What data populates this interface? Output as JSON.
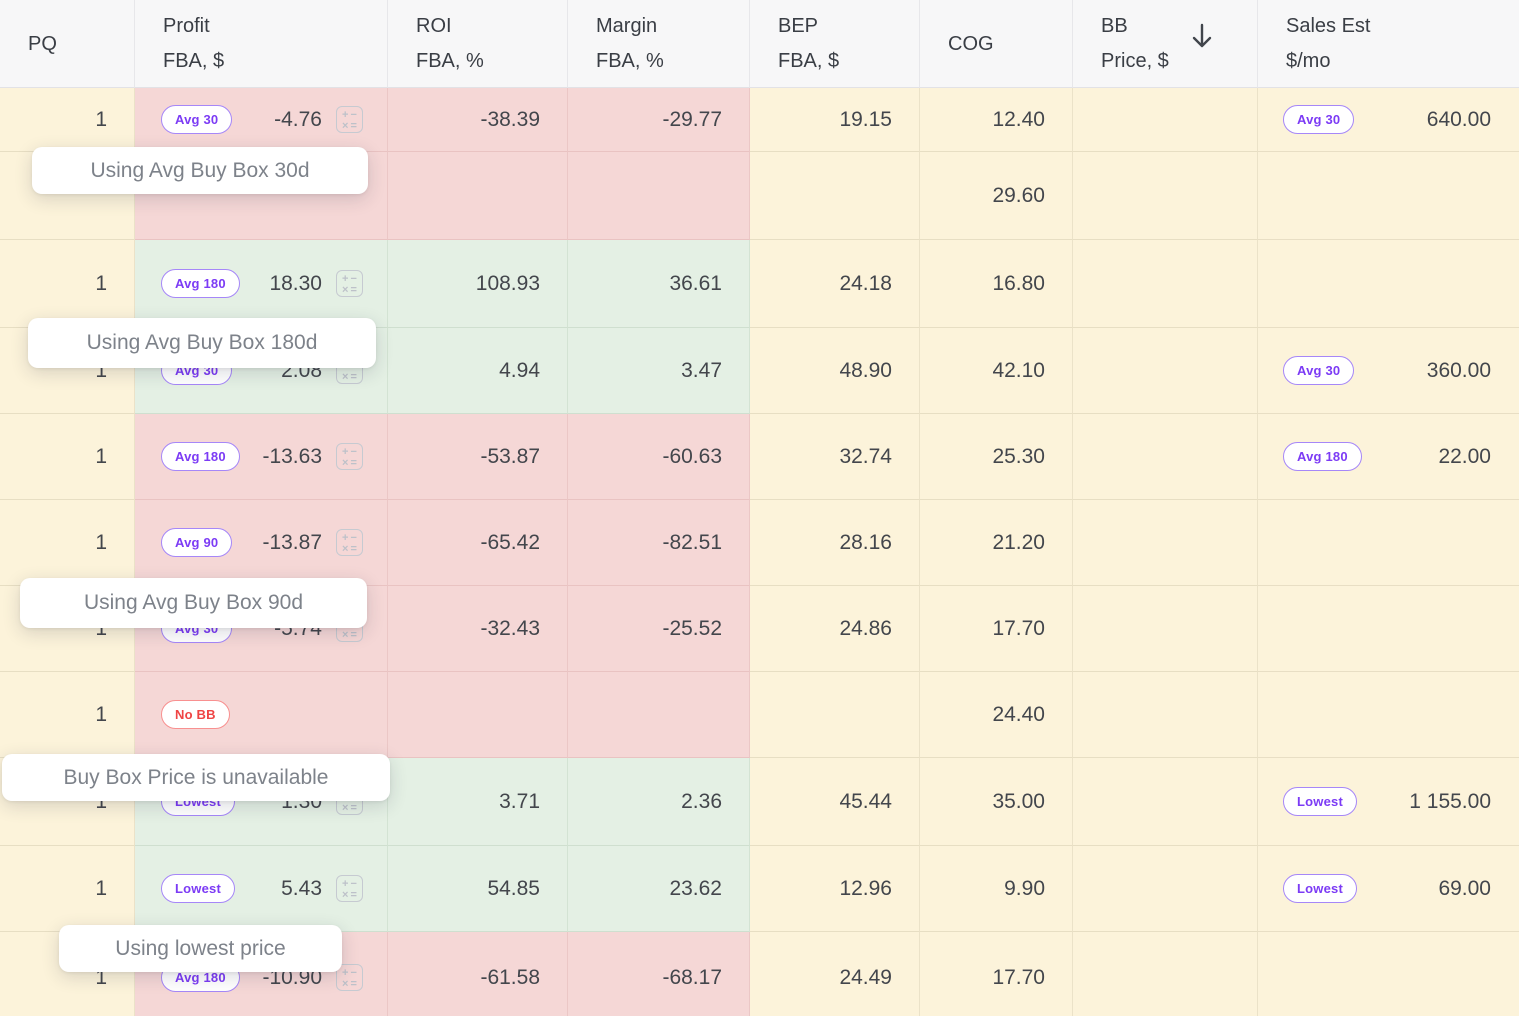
{
  "table": {
    "columns": [
      {
        "id": "pq",
        "label_line1": "PQ",
        "label_line2": ""
      },
      {
        "id": "profit",
        "label_line1": "Profit",
        "label_line2": "FBA, $"
      },
      {
        "id": "roi",
        "label_line1": "ROI",
        "label_line2": "FBA, %"
      },
      {
        "id": "margin",
        "label_line1": "Margin",
        "label_line2": "FBA, %"
      },
      {
        "id": "bep",
        "label_line1": "BEP",
        "label_line2": "FBA, $"
      },
      {
        "id": "cog",
        "label_line1": "COG",
        "label_line2": ""
      },
      {
        "id": "bb",
        "label_line1": "BB",
        "label_line2": "Price, $",
        "sort": "desc"
      },
      {
        "id": "sales",
        "label_line1": "Sales Est",
        "label_line2": "$/mo"
      }
    ],
    "rows": [
      {
        "pq": "1",
        "profit_badge": "Avg 30",
        "profit_badge_style": "purple",
        "profit_value": "-4.76",
        "has_calc": true,
        "roi": "-38.39",
        "margin": "-29.77",
        "bep": "19.15",
        "cog": "12.40",
        "bb": "",
        "sales_badge": "Avg 30",
        "sales_value": "640.00",
        "tone": "negative"
      },
      {
        "pq": "",
        "profit_badge": "",
        "profit_badge_style": "",
        "profit_value": "",
        "has_calc": false,
        "roi": "",
        "margin": "",
        "bep": "",
        "cog": "29.60",
        "bb": "",
        "sales_badge": "",
        "sales_value": "",
        "tone": "negative"
      },
      {
        "pq": "1",
        "profit_badge": "Avg 180",
        "profit_badge_style": "purple",
        "profit_value": "18.30",
        "has_calc": true,
        "roi": "108.93",
        "margin": "36.61",
        "bep": "24.18",
        "cog": "16.80",
        "bb": "",
        "sales_badge": "",
        "sales_value": "",
        "tone": "positive"
      },
      {
        "pq": "1",
        "profit_badge": "Avg 30",
        "profit_badge_style": "purple",
        "profit_value": "2.08",
        "has_calc": true,
        "roi": "4.94",
        "margin": "3.47",
        "bep": "48.90",
        "cog": "42.10",
        "bb": "",
        "sales_badge": "Avg 30",
        "sales_value": "360.00",
        "tone": "positive"
      },
      {
        "pq": "1",
        "profit_badge": "Avg 180",
        "profit_badge_style": "purple",
        "profit_value": "-13.63",
        "has_calc": true,
        "roi": "-53.87",
        "margin": "-60.63",
        "bep": "32.74",
        "cog": "25.30",
        "bb": "",
        "sales_badge": "Avg 180",
        "sales_value": "22.00",
        "tone": "negative"
      },
      {
        "pq": "1",
        "profit_badge": "Avg 90",
        "profit_badge_style": "purple",
        "profit_value": "-13.87",
        "has_calc": true,
        "roi": "-65.42",
        "margin": "-82.51",
        "bep": "28.16",
        "cog": "21.20",
        "bb": "",
        "sales_badge": "",
        "sales_value": "",
        "tone": "negative"
      },
      {
        "pq": "1",
        "profit_badge": "Avg 30",
        "profit_badge_style": "purple",
        "profit_value": "-5.74",
        "has_calc": true,
        "roi": "-32.43",
        "margin": "-25.52",
        "bep": "24.86",
        "cog": "17.70",
        "bb": "",
        "sales_badge": "",
        "sales_value": "",
        "tone": "negative"
      },
      {
        "pq": "1",
        "profit_badge": "No BB",
        "profit_badge_style": "red",
        "profit_value": "",
        "has_calc": false,
        "roi": "",
        "margin": "",
        "bep": "",
        "cog": "24.40",
        "bb": "",
        "sales_badge": "",
        "sales_value": "",
        "tone": "negative"
      },
      {
        "pq": "1",
        "profit_badge": "Lowest",
        "profit_badge_style": "purple",
        "profit_value": "1.30",
        "has_calc": true,
        "roi": "3.71",
        "margin": "2.36",
        "bep": "45.44",
        "cog": "35.00",
        "bb": "",
        "sales_badge": "Lowest",
        "sales_value": "1 155.00",
        "tone": "positive"
      },
      {
        "pq": "1",
        "profit_badge": "Lowest",
        "profit_badge_style": "purple",
        "profit_value": "5.43",
        "has_calc": true,
        "roi": "54.85",
        "margin": "23.62",
        "bep": "12.96",
        "cog": "9.90",
        "bb": "",
        "sales_badge": "Lowest",
        "sales_value": "69.00",
        "tone": "positive"
      },
      {
        "pq": "1",
        "profit_badge": "Avg 180",
        "profit_badge_style": "purple",
        "profit_value": "-10.90",
        "has_calc": true,
        "roi": "-61.58",
        "margin": "-68.17",
        "bep": "24.49",
        "cog": "17.70",
        "bb": "",
        "sales_badge": "",
        "sales_value": "",
        "tone": "negative"
      }
    ]
  },
  "tooltips": [
    {
      "text": "Using Avg Buy Box 30d"
    },
    {
      "text": "Using Avg Buy Box 180d"
    },
    {
      "text": "Using Avg Buy Box 90d"
    },
    {
      "text": "Buy Box Price is unavailable"
    },
    {
      "text": "Using lowest price"
    }
  ],
  "icons": {
    "sort_icon": "arrow-down",
    "calc_glyphs": [
      "+",
      "−",
      "×",
      "="
    ]
  },
  "colors": {
    "bg_yellow": "#FCF3DA",
    "bg_pink": "#F5D7D6",
    "bg_green": "#E4F0E4",
    "header_bg": "#F7F7F8",
    "badge_purple": "#7C3BF5",
    "badge_purple_border": "#A687F8",
    "badge_red": "#EF4444",
    "badge_red_border": "#F89090"
  }
}
